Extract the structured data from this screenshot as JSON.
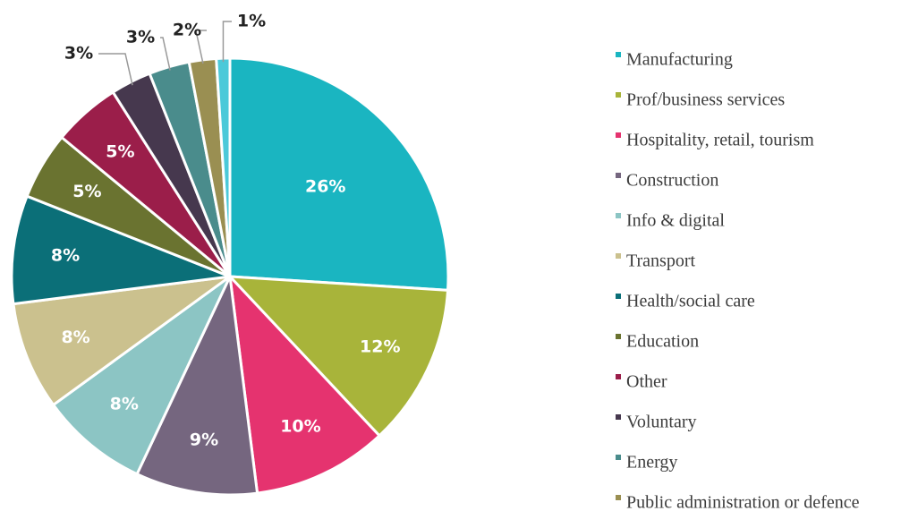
{
  "chart_data": {
    "type": "pie",
    "categories": [
      "Manufacturing",
      "Prof/business services",
      "Hospitality, retail, tourism",
      "Construction",
      "Info & digital",
      "Transport",
      "Health/social care",
      "Education",
      "Other",
      "Voluntary",
      "Energy",
      "Public administration or defence",
      null
    ],
    "values": [
      26,
      12,
      10,
      9,
      8,
      8,
      8,
      5,
      5,
      3,
      3,
      2,
      1
    ],
    "value_labels": [
      "26%",
      "12%",
      "10%",
      "9%",
      "8%",
      "8%",
      "8%",
      "5%",
      "5%",
      "3%",
      "3%",
      "2%",
      "1%"
    ],
    "colors": [
      "#1ab5c1",
      "#a8b43a",
      "#e5336f",
      "#75667f",
      "#8cc5c4",
      "#cbc18e",
      "#0b6f78",
      "#6a7330",
      "#9b1e4a",
      "#46384e",
      "#4a8c8c",
      "#9a8f52",
      "#4bc9d9"
    ]
  }
}
